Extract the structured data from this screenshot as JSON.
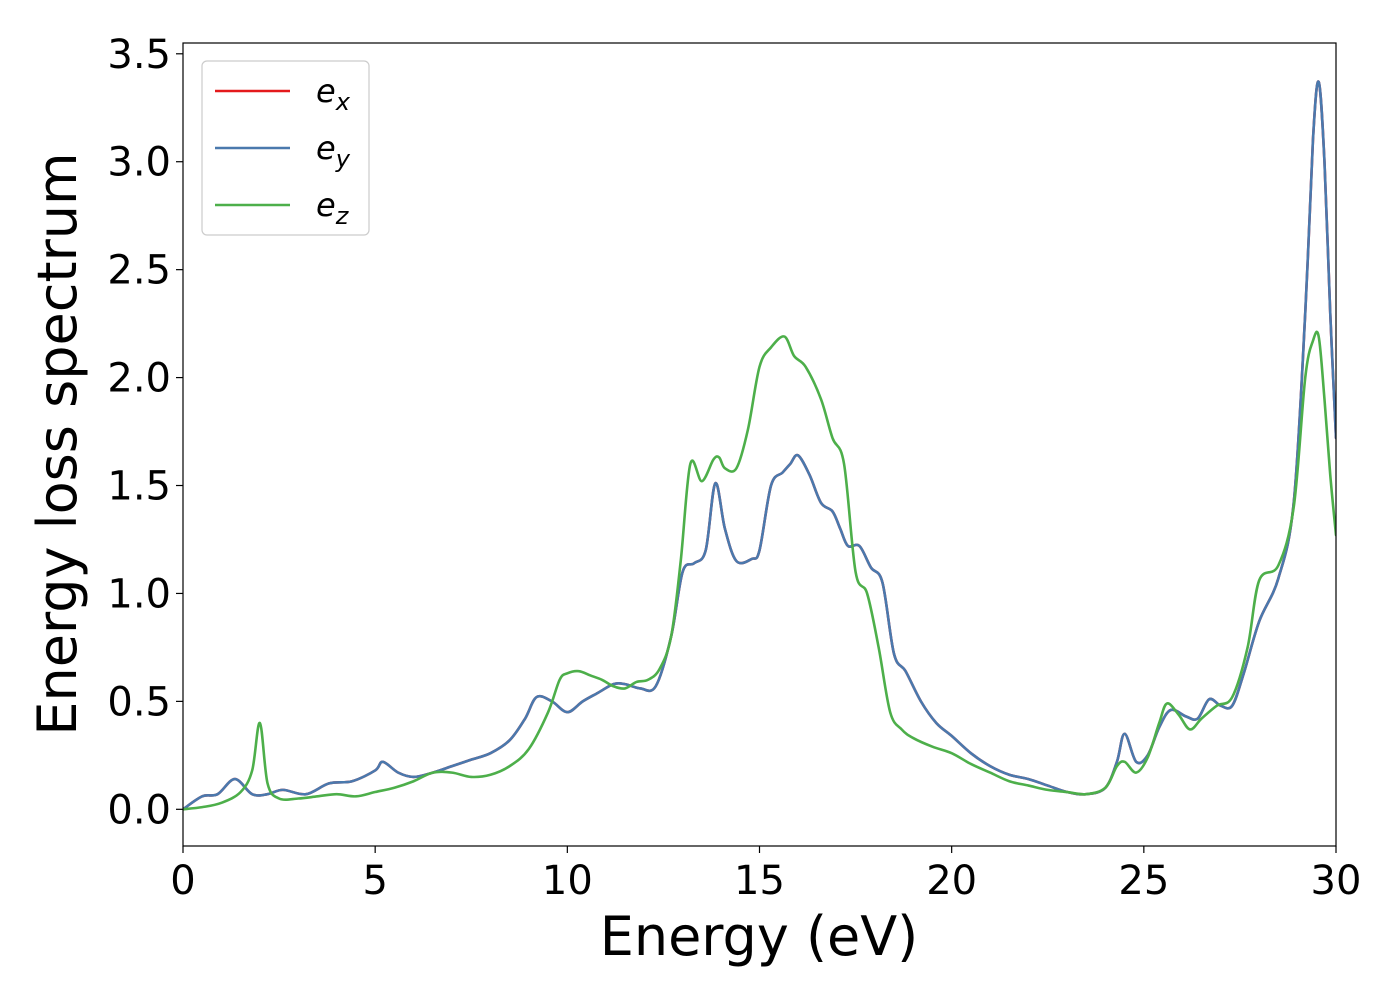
{
  "chart_data": {
    "type": "line",
    "title": "",
    "xlabel": "Energy (eV)",
    "ylabel": "Energy loss spectrum",
    "xlim": [
      0,
      30
    ],
    "ylim": [
      -0.17,
      3.55
    ],
    "xticks": [
      0,
      5,
      10,
      15,
      20,
      25,
      30
    ],
    "xtick_labels": [
      "0",
      "5",
      "10",
      "15",
      "20",
      "25",
      "30"
    ],
    "yticks": [
      0.0,
      0.5,
      1.0,
      1.5,
      2.0,
      2.5,
      3.0,
      3.5
    ],
    "ytick_labels": [
      "0.0",
      "0.5",
      "1.0",
      "1.5",
      "2.0",
      "2.5",
      "3.0",
      "3.5"
    ],
    "grid": false,
    "legend_position": "top-left",
    "series": [
      {
        "name": "e_x",
        "label_base": "e",
        "label_sub": "x",
        "color": "#e41a1c",
        "x": [
          0,
          0.5,
          0.9,
          1.35,
          1.8,
          2.2,
          2.6,
          3.2,
          3.8,
          4.4,
          5.0,
          5.2,
          5.6,
          6.0,
          6.5,
          7.0,
          7.5,
          8.0,
          8.5,
          8.9,
          9.2,
          9.6,
          10.0,
          10.4,
          10.8,
          11.2,
          11.5,
          11.9,
          12.3,
          12.7,
          13.0,
          13.3,
          13.6,
          13.85,
          14.1,
          14.4,
          14.8,
          15.0,
          15.3,
          15.6,
          15.8,
          16.0,
          16.3,
          16.6,
          16.9,
          17.1,
          17.3,
          17.6,
          17.9,
          18.2,
          18.5,
          18.8,
          19.2,
          19.6,
          20.0,
          20.5,
          21.0,
          21.5,
          22.0,
          22.5,
          23.0,
          23.5,
          24.0,
          24.3,
          24.5,
          24.8,
          25.1,
          25.4,
          25.7,
          26.1,
          26.4,
          26.7,
          27.0,
          27.3,
          27.6,
          28.0,
          28.5,
          28.9,
          29.2,
          29.4,
          29.55,
          29.7,
          29.85,
          30.0
        ],
        "y": [
          0.0,
          0.06,
          0.07,
          0.14,
          0.07,
          0.07,
          0.09,
          0.07,
          0.12,
          0.13,
          0.18,
          0.22,
          0.17,
          0.15,
          0.17,
          0.2,
          0.23,
          0.26,
          0.32,
          0.42,
          0.52,
          0.5,
          0.45,
          0.5,
          0.54,
          0.58,
          0.58,
          0.56,
          0.57,
          0.8,
          1.1,
          1.14,
          1.2,
          1.51,
          1.3,
          1.15,
          1.16,
          1.2,
          1.5,
          1.56,
          1.6,
          1.64,
          1.55,
          1.42,
          1.38,
          1.3,
          1.22,
          1.22,
          1.12,
          1.05,
          0.72,
          0.64,
          0.5,
          0.4,
          0.34,
          0.26,
          0.2,
          0.16,
          0.14,
          0.11,
          0.08,
          0.07,
          0.1,
          0.22,
          0.35,
          0.22,
          0.25,
          0.38,
          0.46,
          0.43,
          0.42,
          0.51,
          0.48,
          0.48,
          0.63,
          0.87,
          1.07,
          1.42,
          2.3,
          3.1,
          3.37,
          3.0,
          2.3,
          1.72
        ]
      },
      {
        "name": "e_y",
        "label_base": "e",
        "label_sub": "y",
        "color": "#4a79ad",
        "x": [
          0,
          0.5,
          0.9,
          1.35,
          1.8,
          2.2,
          2.6,
          3.2,
          3.8,
          4.4,
          5.0,
          5.2,
          5.6,
          6.0,
          6.5,
          7.0,
          7.5,
          8.0,
          8.5,
          8.9,
          9.2,
          9.6,
          10.0,
          10.4,
          10.8,
          11.2,
          11.5,
          11.9,
          12.3,
          12.7,
          13.0,
          13.3,
          13.6,
          13.85,
          14.1,
          14.4,
          14.8,
          15.0,
          15.3,
          15.6,
          15.8,
          16.0,
          16.3,
          16.6,
          16.9,
          17.1,
          17.3,
          17.6,
          17.9,
          18.2,
          18.5,
          18.8,
          19.2,
          19.6,
          20.0,
          20.5,
          21.0,
          21.5,
          22.0,
          22.5,
          23.0,
          23.5,
          24.0,
          24.3,
          24.5,
          24.8,
          25.1,
          25.4,
          25.7,
          26.1,
          26.4,
          26.7,
          27.0,
          27.3,
          27.6,
          28.0,
          28.5,
          28.9,
          29.2,
          29.4,
          29.55,
          29.7,
          29.85,
          30.0
        ],
        "y": [
          0.0,
          0.06,
          0.07,
          0.14,
          0.07,
          0.07,
          0.09,
          0.07,
          0.12,
          0.13,
          0.18,
          0.22,
          0.17,
          0.15,
          0.17,
          0.2,
          0.23,
          0.26,
          0.32,
          0.42,
          0.52,
          0.5,
          0.45,
          0.5,
          0.54,
          0.58,
          0.58,
          0.56,
          0.57,
          0.8,
          1.1,
          1.14,
          1.2,
          1.51,
          1.3,
          1.15,
          1.16,
          1.2,
          1.5,
          1.56,
          1.6,
          1.64,
          1.55,
          1.42,
          1.38,
          1.3,
          1.22,
          1.22,
          1.12,
          1.05,
          0.72,
          0.64,
          0.5,
          0.4,
          0.34,
          0.26,
          0.2,
          0.16,
          0.14,
          0.11,
          0.08,
          0.07,
          0.1,
          0.22,
          0.35,
          0.22,
          0.25,
          0.38,
          0.46,
          0.43,
          0.42,
          0.51,
          0.48,
          0.48,
          0.63,
          0.87,
          1.07,
          1.42,
          2.3,
          3.1,
          3.37,
          3.0,
          2.3,
          1.72
        ]
      },
      {
        "name": "e_z",
        "label_base": "e",
        "label_sub": "z",
        "color": "#4daf4a",
        "x": [
          0,
          0.5,
          1.0,
          1.5,
          1.8,
          2.0,
          2.2,
          2.5,
          3.0,
          3.5,
          4.0,
          4.5,
          5.0,
          5.5,
          6.0,
          6.5,
          7.0,
          7.5,
          8.0,
          8.5,
          9.0,
          9.5,
          9.8,
          10.0,
          10.3,
          10.6,
          10.9,
          11.2,
          11.5,
          11.8,
          12.1,
          12.4,
          12.7,
          12.95,
          13.2,
          13.5,
          13.8,
          13.95,
          14.1,
          14.4,
          14.7,
          15.0,
          15.3,
          15.65,
          15.9,
          16.2,
          16.6,
          16.9,
          17.2,
          17.5,
          17.8,
          18.1,
          18.4,
          18.7,
          19.0,
          19.5,
          20.0,
          20.5,
          21.0,
          21.5,
          22.0,
          22.5,
          23.0,
          23.5,
          24.0,
          24.3,
          24.5,
          24.8,
          25.1,
          25.4,
          25.6,
          25.9,
          26.2,
          26.5,
          26.9,
          27.3,
          27.7,
          28.0,
          28.5,
          28.9,
          29.2,
          29.4,
          29.55,
          29.7,
          29.85,
          30.0
        ],
        "y": [
          0.0,
          0.01,
          0.03,
          0.08,
          0.18,
          0.4,
          0.12,
          0.05,
          0.05,
          0.06,
          0.07,
          0.06,
          0.08,
          0.1,
          0.13,
          0.17,
          0.17,
          0.15,
          0.16,
          0.2,
          0.28,
          0.45,
          0.6,
          0.63,
          0.64,
          0.62,
          0.6,
          0.57,
          0.56,
          0.59,
          0.6,
          0.65,
          0.8,
          1.15,
          1.6,
          1.52,
          1.62,
          1.63,
          1.58,
          1.58,
          1.76,
          2.05,
          2.14,
          2.19,
          2.1,
          2.05,
          1.9,
          1.72,
          1.6,
          1.1,
          1.0,
          0.75,
          0.45,
          0.37,
          0.33,
          0.29,
          0.26,
          0.21,
          0.17,
          0.13,
          0.11,
          0.09,
          0.08,
          0.07,
          0.1,
          0.2,
          0.22,
          0.17,
          0.24,
          0.4,
          0.49,
          0.44,
          0.37,
          0.42,
          0.48,
          0.52,
          0.75,
          1.06,
          1.13,
          1.4,
          2.0,
          2.17,
          2.19,
          1.9,
          1.55,
          1.27
        ]
      }
    ]
  }
}
